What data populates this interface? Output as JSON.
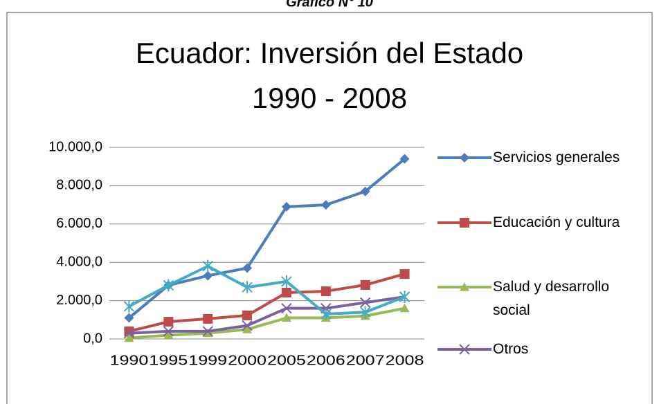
{
  "caption": "Gráfico N° 10",
  "chart_data": {
    "type": "line",
    "title": "Ecuador: Inversión del Estado",
    "subtitle": "1990 - 2008",
    "categories": [
      "1990",
      "1995",
      "1999",
      "2000",
      "2005",
      "2006",
      "2007",
      "2008"
    ],
    "series": [
      {
        "name": "Servicios generales",
        "color": "#4a7ebb",
        "marker": "diamond",
        "values": [
          1100,
          2800,
          3300,
          3700,
          6900,
          7000,
          7700,
          9400
        ]
      },
      {
        "name": "Educación y cultura",
        "color": "#be4b48",
        "marker": "square",
        "values": [
          400,
          900,
          1050,
          1230,
          2420,
          2490,
          2820,
          3390
        ]
      },
      {
        "name": "Salud y desarrollo social",
        "color": "#98b954",
        "marker": "triangle",
        "values": [
          50,
          200,
          300,
          500,
          1100,
          1100,
          1200,
          1600
        ]
      },
      {
        "name": "Otros",
        "color": "#7d60a0",
        "marker": "x",
        "values": [
          300,
          400,
          400,
          700,
          1600,
          1600,
          1900,
          2200
        ]
      },
      {
        "color": "#46aac5",
        "marker": "asterisk",
        "values": [
          1700,
          2800,
          3800,
          2700,
          3000,
          1300,
          1400,
          2200
        ]
      }
    ],
    "ylim": [
      0,
      10000
    ],
    "yticks": [
      {
        "value": 0,
        "label": "0,0"
      },
      {
        "value": 2000,
        "label": "2.000,0"
      },
      {
        "value": 4000,
        "label": "4.000,0"
      },
      {
        "value": 6000,
        "label": "6.000,0"
      },
      {
        "value": 8000,
        "label": "8.000,0"
      },
      {
        "value": 10000,
        "label": "10.000,0"
      }
    ],
    "grid": true,
    "legend": "right"
  }
}
